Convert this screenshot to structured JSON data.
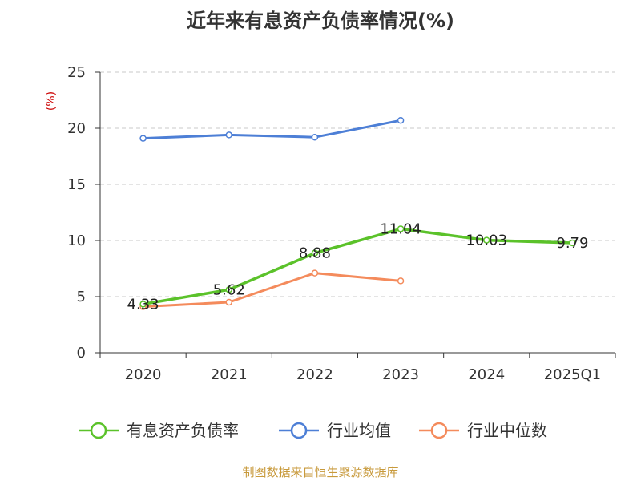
{
  "chart_data": {
    "type": "line",
    "title": "近年来有息资产负债率情况(%)",
    "unit_label": "(%)",
    "categories": [
      "2020",
      "2021",
      "2022",
      "2023",
      "2024",
      "2025Q1"
    ],
    "ylim": [
      0,
      25
    ],
    "yticks": [
      0,
      5,
      10,
      15,
      20,
      25
    ],
    "grid": true,
    "legend_position": "bottom",
    "series": [
      {
        "name": "有息资产负债率",
        "color": "#5bc22a",
        "values": [
          4.33,
          5.62,
          8.88,
          11.04,
          10.03,
          9.79
        ],
        "labels": [
          "4.33",
          "5.62",
          "8.88",
          "11.04",
          "10.03",
          "9.79"
        ]
      },
      {
        "name": "行业均值",
        "color": "#4d7fd6",
        "values": [
          19.1,
          19.4,
          19.2,
          20.7,
          null,
          null
        ]
      },
      {
        "name": "行业中位数",
        "color": "#f48b5c",
        "values": [
          4.1,
          4.5,
          7.1,
          6.4,
          null,
          null
        ]
      }
    ]
  },
  "source_text": "制图数据来自恒生聚源数据库",
  "colors": {
    "axis": "#333333",
    "grid": "#c8c8c8",
    "unit_label": "#cc0000",
    "source_text": "#c89a3c"
  }
}
